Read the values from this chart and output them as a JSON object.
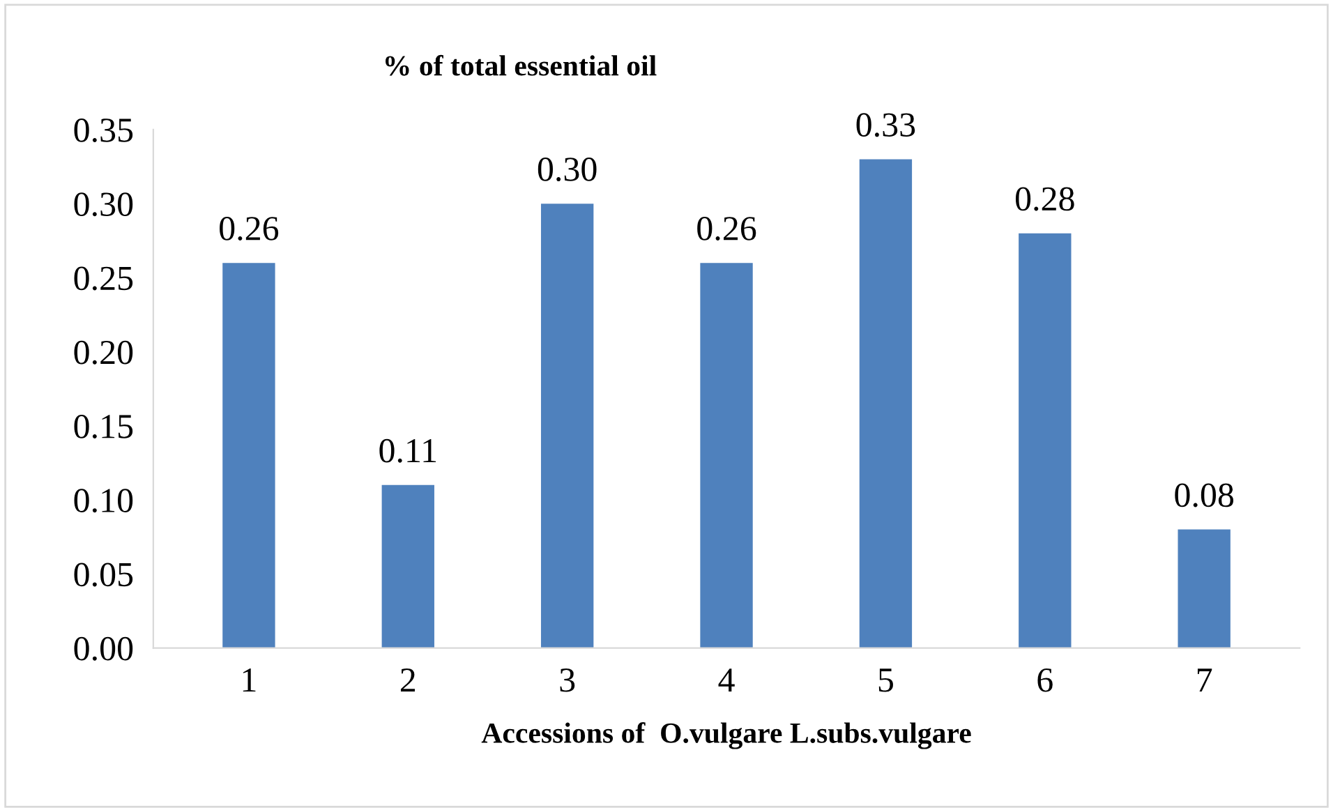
{
  "chart_data": {
    "type": "bar",
    "title": "% of total essential oil",
    "xlabel": "Accessions of  O.vulgare L.subs.vulgare",
    "categories": [
      "1",
      "2",
      "3",
      "4",
      "5",
      "6",
      "7"
    ],
    "values": [
      0.26,
      0.11,
      0.3,
      0.26,
      0.33,
      0.28,
      0.08
    ],
    "color": "#4f81bd",
    "value_labels": [
      "0.26",
      "0.11",
      "0.30",
      "0.26",
      "0.33",
      "0.28",
      "0.08"
    ],
    "grid": false,
    "legend": false,
    "ylim": [
      0,
      0.35
    ],
    "yticks": [
      {
        "value": 0,
        "label": "0.00"
      },
      {
        "value": 0.05,
        "label": "0.05"
      },
      {
        "value": 0.1,
        "label": "0.10"
      },
      {
        "value": 0.15,
        "label": "0.15"
      },
      {
        "value": 0.2,
        "label": "0.20"
      },
      {
        "value": 0.25,
        "label": "0.25"
      },
      {
        "value": 0.3,
        "label": "0.30"
      },
      {
        "value": 0.35,
        "label": "0.35"
      }
    ]
  }
}
